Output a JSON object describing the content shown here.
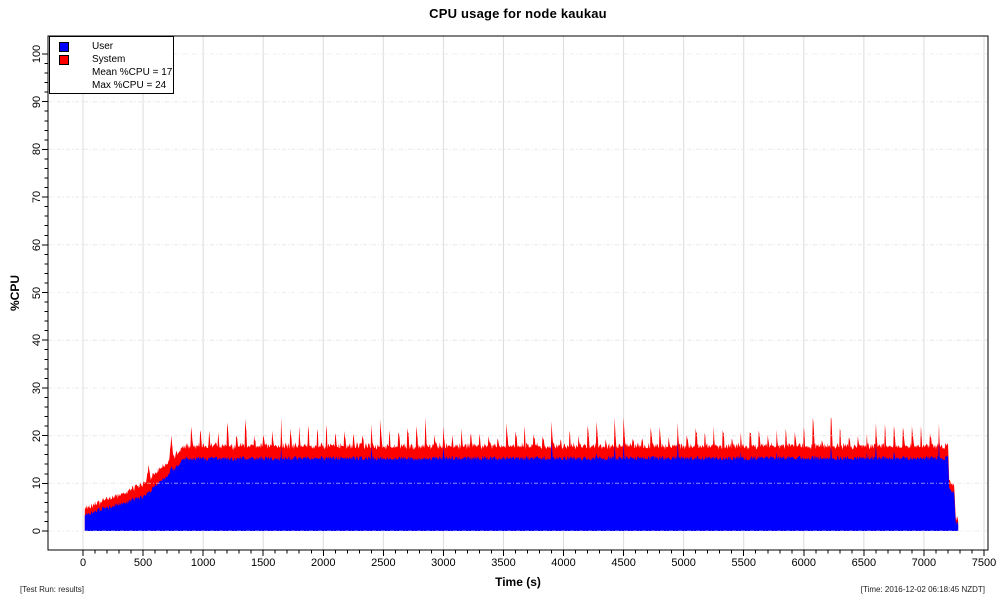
{
  "title": "CPU usage for node kaukau",
  "footer": {
    "left": "[Test Run: results]",
    "right": "[Time: 2016-12-02 06:18:45 NZDT]"
  },
  "legend": {
    "mean_line": "Mean %CPU = 17",
    "max_line": "Max %CPU = 24"
  },
  "chart_data": {
    "type": "area",
    "stacked": true,
    "title": "CPU usage for node kaukau",
    "xlabel": "Time (s)",
    "ylabel": "%CPU",
    "xlim": [
      0,
      7500
    ],
    "ylim": [
      0,
      100
    ],
    "x_ticks": [
      0,
      500,
      1000,
      1500,
      2000,
      2500,
      3000,
      3500,
      4000,
      4500,
      5000,
      5500,
      6000,
      6500,
      7000,
      7500
    ],
    "x_minor_step": 100,
    "y_ticks": [
      0,
      10,
      20,
      30,
      40,
      50,
      60,
      70,
      80,
      90,
      100
    ],
    "y_minor_step": 2,
    "grid": {
      "vertical_style": "solid",
      "horizontal_style": "dash-dot",
      "color": "#dcdcdc"
    },
    "legend_position": "top-left",
    "series": [
      {
        "name": "User",
        "color": "#0000ff"
      },
      {
        "name": "System",
        "color": "#ff0000"
      }
    ],
    "stats": {
      "mean_pct_cpu": 17,
      "max_pct_cpu": 24
    },
    "sampling": {
      "t_start": 15,
      "t_end": 7285,
      "step": 5,
      "seed": 42
    },
    "profile_user_total": [
      [
        15,
        3.2,
        4.6
      ],
      [
        60,
        3.9,
        5.4
      ],
      [
        150,
        4.5,
        6.2
      ],
      [
        250,
        5.2,
        7.1
      ],
      [
        350,
        6.0,
        8.1
      ],
      [
        450,
        6.8,
        9.3
      ],
      [
        520,
        7.4,
        10.2
      ],
      [
        600,
        9.4,
        12.0
      ],
      [
        700,
        11.4,
        14.0
      ],
      [
        780,
        13.4,
        16.2
      ],
      [
        850,
        15.2,
        17.8
      ],
      [
        7200,
        15.3,
        17.8
      ],
      [
        7212,
        8.5,
        10.2
      ],
      [
        7252,
        8.2,
        9.8
      ],
      [
        7262,
        2.2,
        3.3
      ],
      [
        7285,
        1.2,
        2.0
      ]
    ],
    "burst_events": [
      [
        545,
        0.6,
        2.6
      ],
      [
        735,
        1.2,
        3.6
      ]
    ],
    "plateau": {
      "start": 850,
      "end": 7195,
      "user": 15.2,
      "total": 17.8,
      "spike_period_s": 75,
      "spike_top_typical": 21,
      "spike_top_max": 23.8
    }
  }
}
